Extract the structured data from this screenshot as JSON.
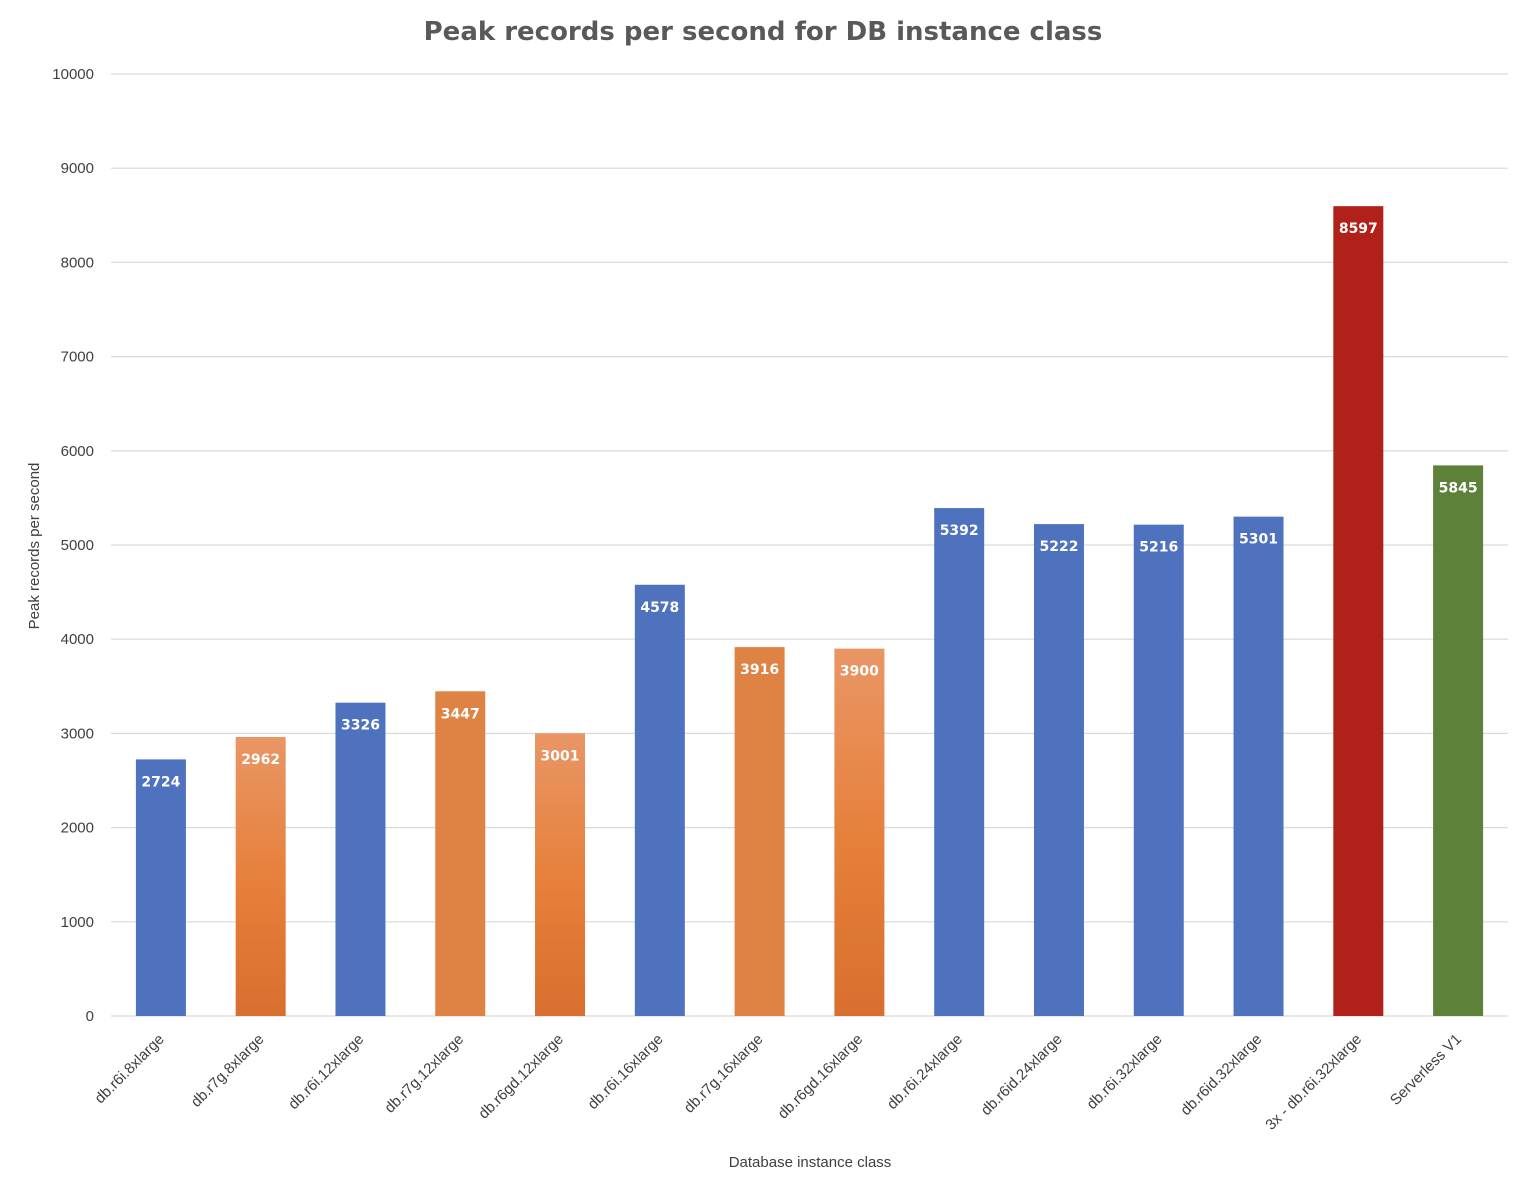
{
  "chart_data": {
    "type": "bar",
    "title": "Peak records per second for DB instance class",
    "xlabel": "Database instance class",
    "ylabel": "Peak records per second",
    "ylim": [
      0,
      10000
    ],
    "yticks": [
      0,
      1000,
      2000,
      3000,
      4000,
      5000,
      6000,
      7000,
      8000,
      9000,
      10000
    ],
    "grid": true,
    "legend": "none",
    "categories": [
      "db.r6i.8xlarge",
      "db.r7g.8xlarge",
      "db.r6i.12xlarge",
      "db.r7g.12xlarge",
      "db.r6gd.12xlarge",
      "db.r6i.16xlarge",
      "db.r7g.16xlarge",
      "db.r6gd.16xlarge",
      "db.r6i.24xlarge",
      "db.r6id.24xlarge",
      "db.r6i.32xlarge",
      "db.r6id.32xlarge",
      "3x - db.r6i.32xlarge",
      "Serverless V1"
    ],
    "values": [
      2724,
      2962,
      3326,
      3447,
      3001,
      4578,
      3916,
      3900,
      5392,
      5222,
      5216,
      5301,
      8597,
      5845
    ],
    "data_labels": [
      "2724",
      "2962",
      "3326",
      "3447",
      "3001",
      "4578",
      "3916",
      "3900",
      "5392",
      "5222",
      "5216",
      "5301",
      "8597",
      "5845"
    ],
    "bar_styles": [
      "blue",
      "orange-gradient",
      "blue",
      "orange",
      "orange-gradient",
      "blue",
      "orange",
      "orange-gradient",
      "blue",
      "blue",
      "blue",
      "blue",
      "red",
      "green"
    ],
    "colors": {
      "blue": "#4e72be",
      "orange": "#de8344",
      "orange_light": "#e99665",
      "orange_mid": "#e67f39",
      "orange_dark": "#d86f2f",
      "red": "#b1211a",
      "green": "#5e813a"
    }
  }
}
